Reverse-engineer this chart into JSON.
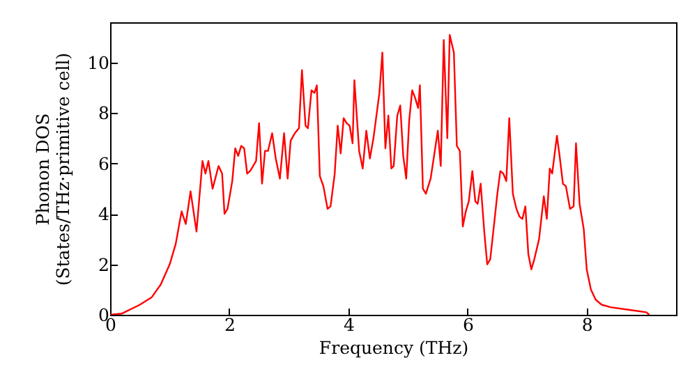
{
  "chart_data": {
    "type": "line",
    "xlabel": "Frequency (THz)",
    "ylabel": "Phonon DOS\n(States/THz·primitive cell)",
    "xlim": [
      0,
      9.5
    ],
    "ylim": [
      0,
      11.6
    ],
    "xticks": [
      0,
      2,
      4,
      6,
      8
    ],
    "yticks": [
      0,
      2,
      4,
      6,
      8,
      10
    ],
    "grid": false,
    "marker": "none",
    "line_style": "solid",
    "x": [
      0,
      0.2,
      0.5,
      0.7,
      0.85,
      1.0,
      1.1,
      1.2,
      1.27,
      1.35,
      1.45,
      1.55,
      1.6,
      1.65,
      1.72,
      1.82,
      1.88,
      1.92,
      1.97,
      2.05,
      2.1,
      2.15,
      2.2,
      2.25,
      2.3,
      2.35,
      2.45,
      2.5,
      2.55,
      2.6,
      2.65,
      2.72,
      2.78,
      2.85,
      2.92,
      2.98,
      3.03,
      3.1,
      3.17,
      3.22,
      3.28,
      3.32,
      3.38,
      3.43,
      3.47,
      3.52,
      3.58,
      3.65,
      3.7,
      3.77,
      3.82,
      3.87,
      3.92,
      3.97,
      4.02,
      4.07,
      4.1,
      4.18,
      4.24,
      4.3,
      4.36,
      4.42,
      4.52,
      4.57,
      4.62,
      4.67,
      4.72,
      4.76,
      4.82,
      4.87,
      4.92,
      4.97,
      5.02,
      5.07,
      5.12,
      5.17,
      5.2,
      5.25,
      5.3,
      5.38,
      5.45,
      5.5,
      5.55,
      5.6,
      5.66,
      5.7,
      5.77,
      5.82,
      5.87,
      5.92,
      5.97,
      6.02,
      6.08,
      6.13,
      6.17,
      6.22,
      6.28,
      6.33,
      6.38,
      6.45,
      6.5,
      6.55,
      6.6,
      6.65,
      6.7,
      6.76,
      6.82,
      6.87,
      6.92,
      6.97,
      7.02,
      7.07,
      7.12,
      7.2,
      7.28,
      7.33,
      7.38,
      7.42,
      7.5,
      7.55,
      7.6,
      7.65,
      7.72,
      7.78,
      7.82,
      7.88,
      7.95,
      8.0,
      8.07,
      8.15,
      8.25,
      8.4,
      8.7,
      9.0,
      9.05
    ],
    "series": [
      {
        "color": "#ff0000",
        "values": [
          0,
          0.05,
          0.4,
          0.7,
          1.2,
          2.0,
          2.8,
          4.1,
          3.6,
          4.9,
          3.3,
          6.1,
          5.6,
          6.1,
          5.0,
          5.9,
          5.6,
          4.0,
          4.2,
          5.3,
          6.6,
          6.3,
          6.7,
          6.6,
          5.6,
          5.7,
          6.1,
          7.6,
          5.2,
          6.5,
          6.5,
          7.2,
          6.2,
          5.4,
          7.2,
          5.4,
          6.9,
          7.2,
          7.4,
          9.7,
          7.5,
          7.4,
          8.9,
          8.8,
          9.1,
          5.5,
          5.1,
          4.2,
          4.3,
          5.6,
          7.5,
          6.4,
          7.8,
          7.6,
          7.5,
          6.8,
          9.3,
          6.5,
          5.8,
          7.3,
          6.2,
          7.0,
          8.8,
          10.4,
          6.6,
          7.9,
          5.8,
          5.9,
          7.9,
          8.3,
          6.3,
          5.4,
          7.7,
          8.9,
          8.6,
          8.2,
          9.1,
          5.0,
          4.8,
          5.4,
          6.5,
          7.3,
          5.9,
          10.9,
          7.0,
          11.1,
          10.4,
          6.7,
          6.5,
          3.5,
          4.1,
          4.5,
          5.7,
          4.5,
          4.4,
          5.2,
          3.3,
          2.0,
          2.2,
          3.7,
          4.8,
          5.7,
          5.6,
          5.3,
          7.8,
          4.8,
          4.2,
          3.9,
          3.8,
          4.3,
          2.4,
          1.8,
          2.2,
          3.0,
          4.7,
          3.8,
          5.8,
          5.6,
          7.1,
          6.2,
          5.2,
          5.1,
          4.2,
          4.3,
          6.8,
          4.4,
          3.4,
          1.8,
          1.0,
          0.6,
          0.4,
          0.3,
          0.2,
          0.1,
          0
        ]
      }
    ]
  }
}
